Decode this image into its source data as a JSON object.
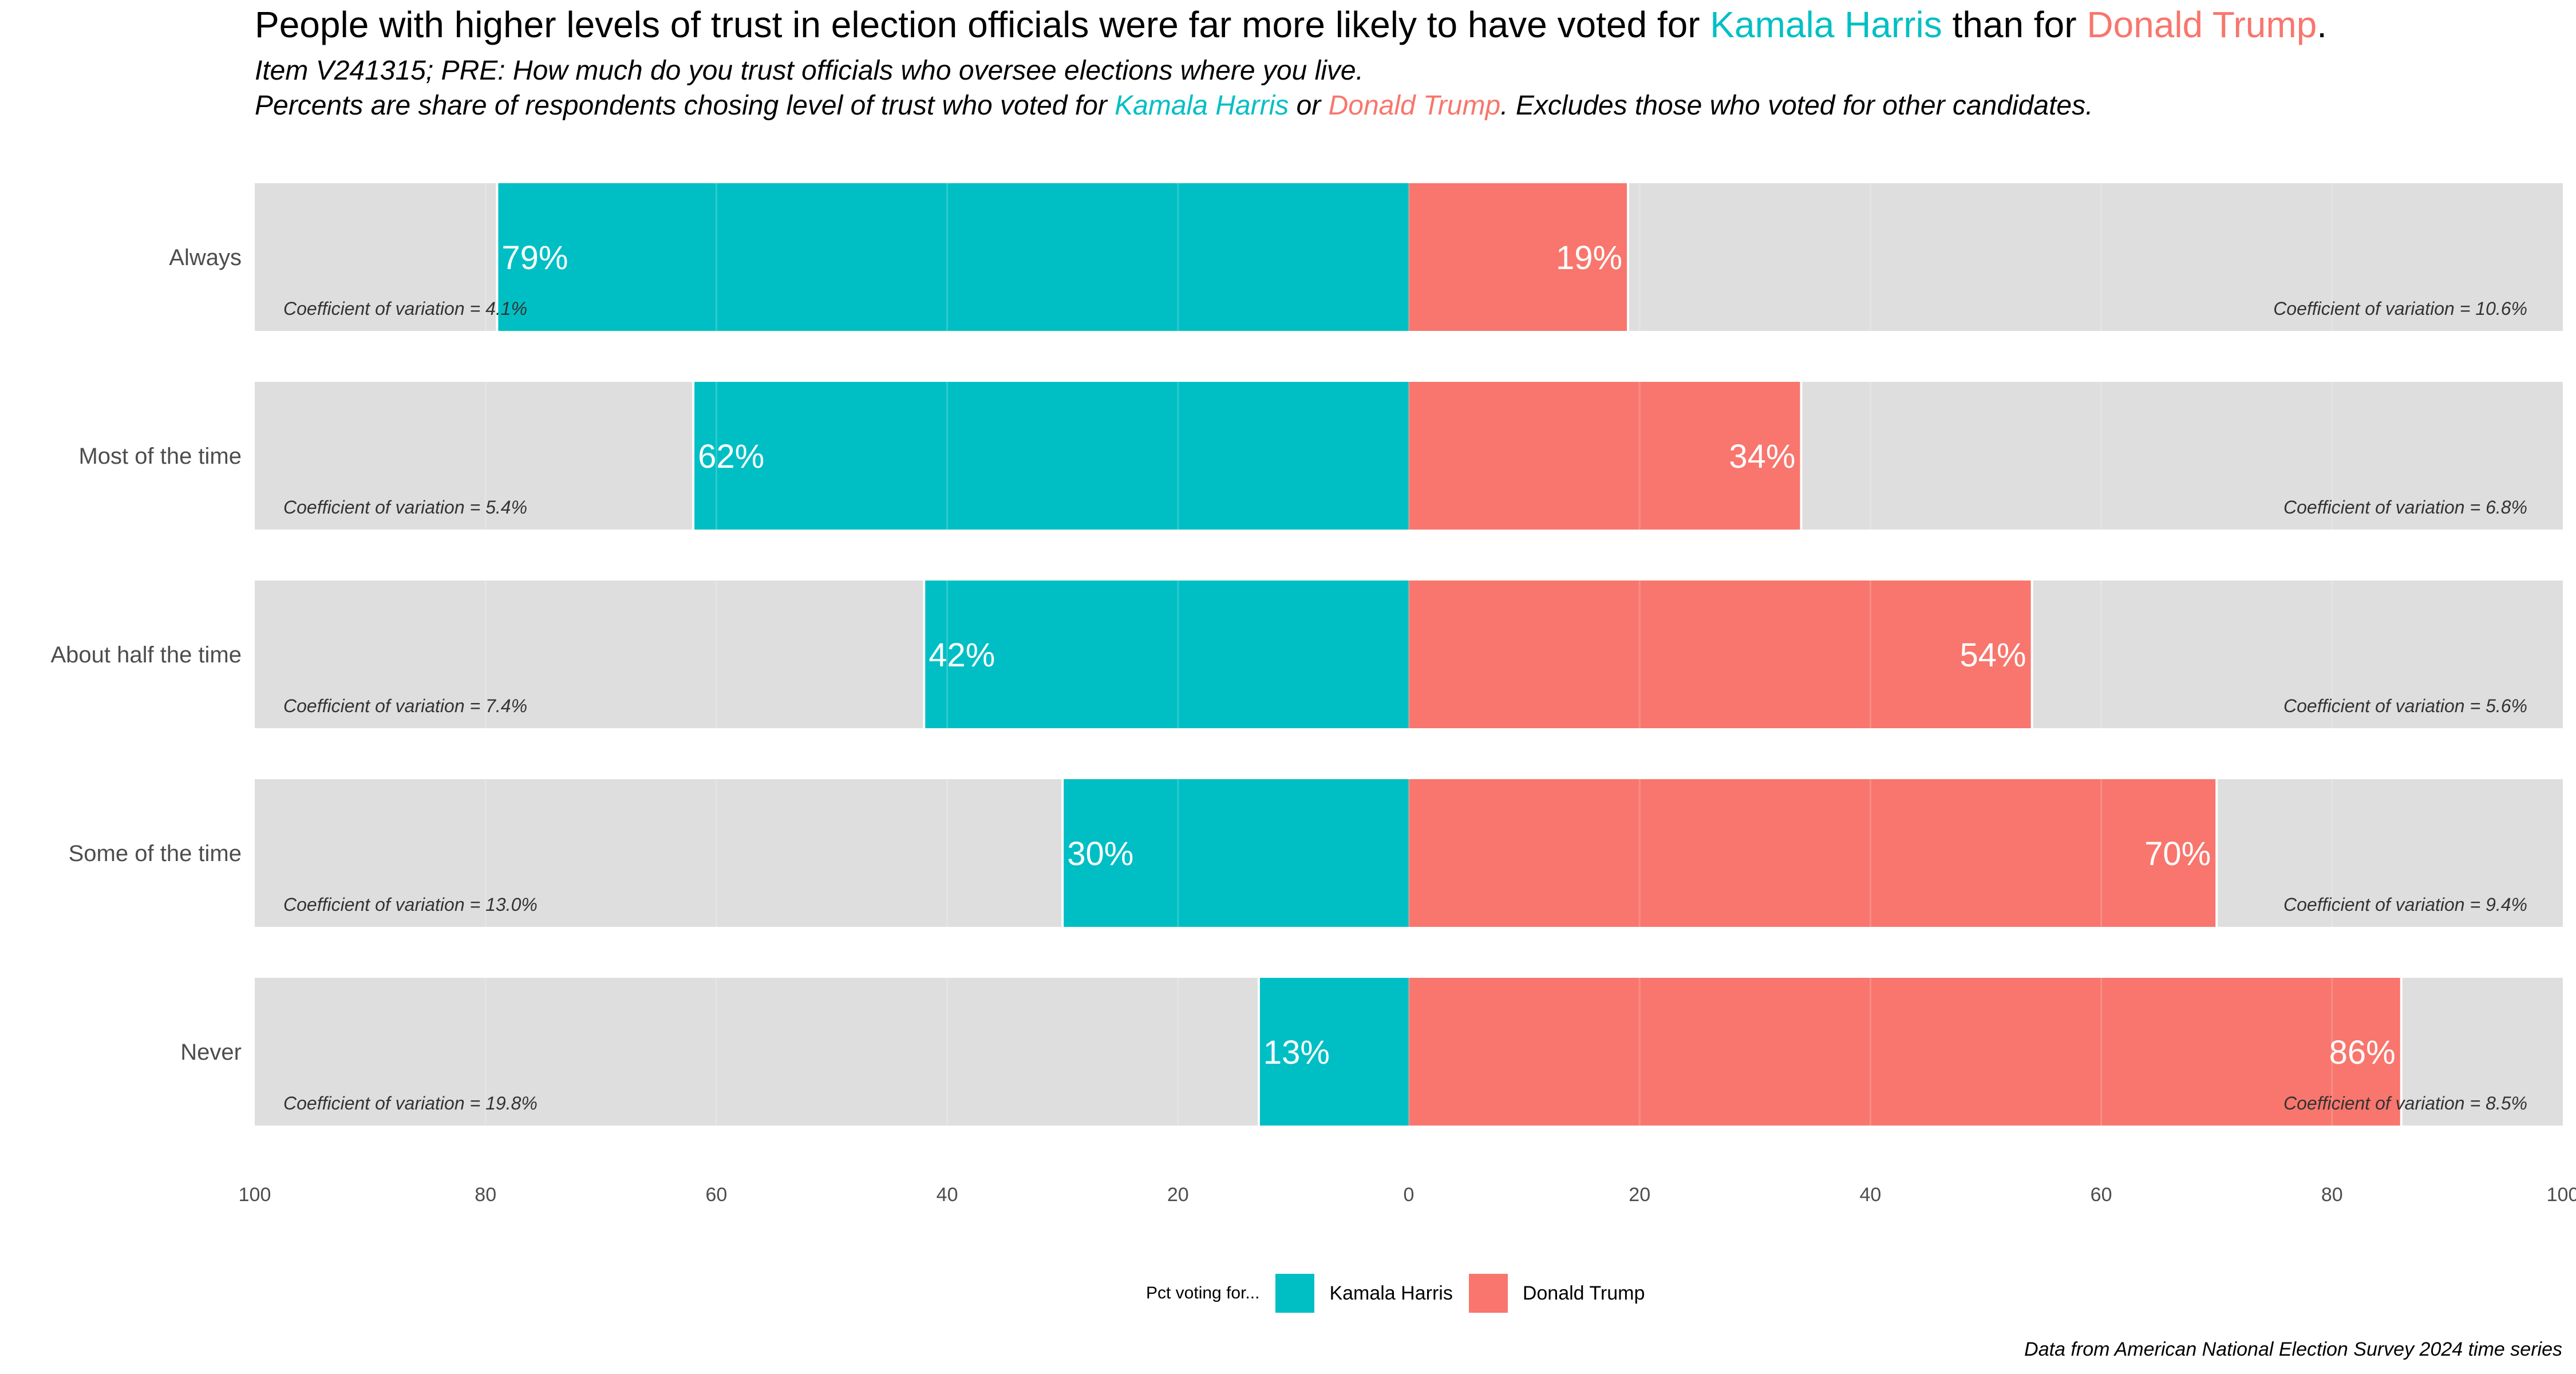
{
  "title": {
    "prefix": "People with higher levels of trust in election officials were far more likely to have voted for ",
    "harris": "Kamala Harris",
    "middle": " than for ",
    "trump": "Donald Trump",
    "suffix": "."
  },
  "subtitle_1": "Item V241315; PRE: How much do you trust officials who oversee elections where you live.",
  "subtitle_2": {
    "prefix": "Percents are share of respondents chosing level of trust who voted for ",
    "harris": "Kamala Harris",
    "middle": " or ",
    "trump": "Donald Trump",
    "suffix": ". Excludes those who voted for other candidates."
  },
  "legend": {
    "title": "Pct voting for...",
    "harris": "Kamala Harris",
    "trump": "Donald Trump"
  },
  "caption": "Data from American National Election Survey 2024 time series",
  "colors": {
    "harris": "#00BFC4",
    "trump": "#F8766D",
    "panel": "#DEDEDE",
    "grid": "#EBEBEB"
  },
  "chart_data": {
    "type": "bar",
    "orientation": "horizontal-diverging",
    "categories": [
      "Always",
      "Most of the time",
      "About half the time",
      "Some of the time",
      "Never"
    ],
    "series": [
      {
        "name": "Kamala Harris",
        "values": [
          79,
          62,
          42,
          30,
          13
        ],
        "direction": "left",
        "labels": [
          "79%",
          "62%",
          "42%",
          "30%",
          "13%"
        ]
      },
      {
        "name": "Donald Trump",
        "values": [
          19,
          34,
          54,
          70,
          86
        ],
        "direction": "right",
        "labels": [
          "19%",
          "34%",
          "54%",
          "70%",
          "86%"
        ]
      }
    ],
    "cv_harris": [
      "Coefficient of variation = 4.1%",
      "Coefficient of variation = 5.4%",
      "Coefficient of variation = 7.4%",
      "Coefficient of variation = 13.0%",
      "Coefficient of variation = 19.8%"
    ],
    "cv_trump": [
      "Coefficient of variation = 10.6%",
      "Coefficient of variation = 6.8%",
      "Coefficient of variation = 5.6%",
      "Coefficient of variation = 9.4%",
      "Coefficient of variation = 8.5%"
    ],
    "xlim": [
      -100,
      100
    ],
    "x_ticks": [
      -100,
      -80,
      -60,
      -40,
      -20,
      0,
      20,
      40,
      60,
      80,
      100
    ],
    "x_tick_labels": [
      "100",
      "80",
      "60",
      "40",
      "20",
      "0",
      "20",
      "40",
      "60",
      "80",
      "100"
    ],
    "grid": true,
    "legend_position": "bottom"
  }
}
